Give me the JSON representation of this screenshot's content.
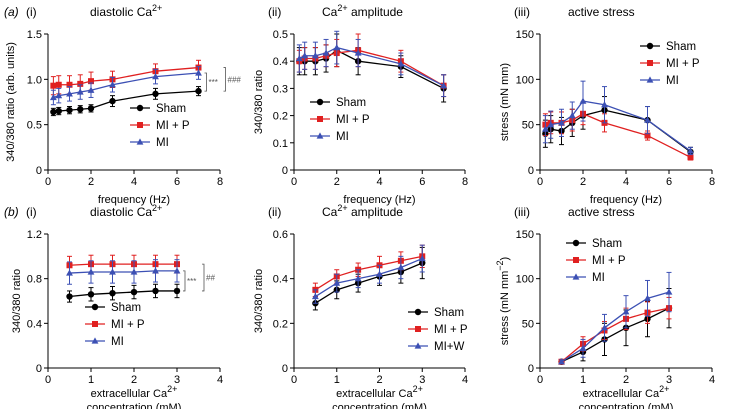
{
  "panel_rows": [
    "(a)",
    "(b)"
  ],
  "colors": {
    "Sham": "#000000",
    "MI + P": "#e02020",
    "MI": "#3c50b4",
    "MI+W": "#3c50b4"
  },
  "chart_data": [
    {
      "type": "line",
      "row_label": "(a)",
      "panel": "(i)",
      "title": "diastolic Ca",
      "title_sup": "2+",
      "xlabel": "frequency (Hz)",
      "xlabel2": "",
      "ylabel": "340/380 ratio (arb. units)",
      "xlim": [
        0,
        8
      ],
      "ylim": [
        0,
        1.5
      ],
      "xticks": [
        "0",
        "2",
        "4",
        "6",
        "8"
      ],
      "yticks": [
        "0",
        "0.5",
        "1.0",
        "1.5"
      ],
      "yvals": [
        0,
        0.5,
        1.0,
        1.5
      ],
      "legend_position": "bottom-right",
      "annotation": [
        "***",
        "###"
      ],
      "series": [
        {
          "name": "Sham",
          "color": "#000000",
          "marker": "circle",
          "x": [
            0.25,
            0.5,
            1,
            1.5,
            2,
            3,
            5,
            7
          ],
          "y": [
            0.64,
            0.65,
            0.66,
            0.67,
            0.68,
            0.76,
            0.84,
            0.87
          ],
          "err": [
            0.04,
            0.04,
            0.04,
            0.04,
            0.04,
            0.06,
            0.06,
            0.05
          ]
        },
        {
          "name": "MI + P",
          "color": "#e02020",
          "marker": "square",
          "x": [
            0.25,
            0.5,
            1,
            1.5,
            2,
            3,
            5,
            7
          ],
          "y": [
            0.93,
            0.94,
            0.94,
            0.95,
            0.98,
            1.0,
            1.09,
            1.13
          ],
          "err": [
            0.1,
            0.1,
            0.1,
            0.1,
            0.1,
            0.09,
            0.08,
            0.08
          ]
        },
        {
          "name": "MI",
          "color": "#3c50b4",
          "marker": "triangle",
          "x": [
            0.25,
            0.5,
            1,
            1.5,
            2,
            3,
            5,
            7
          ],
          "y": [
            0.8,
            0.82,
            0.84,
            0.86,
            0.88,
            0.94,
            1.03,
            1.07
          ],
          "err": [
            0.08,
            0.08,
            0.08,
            0.08,
            0.08,
            0.08,
            0.08,
            0.07
          ]
        }
      ]
    },
    {
      "type": "line",
      "row_label": "",
      "panel": "(ii)",
      "title": "Ca",
      "title_sup": "2+",
      "title_after": " amplitude",
      "xlabel": "frequency (Hz)",
      "xlabel2": "",
      "ylabel": "340/380 ratio",
      "xlim": [
        0,
        8
      ],
      "ylim": [
        0,
        0.5
      ],
      "xticks": [
        "0",
        "2",
        "4",
        "6",
        "8"
      ],
      "yticks": [
        "0",
        "0.1",
        "0.2",
        "0.3",
        "0.4",
        "0.5"
      ],
      "yvals": [
        0,
        0.1,
        0.2,
        0.3,
        0.4,
        0.5
      ],
      "legend_position": "bottom-left",
      "series": [
        {
          "name": "Sham",
          "color": "#000000",
          "marker": "circle",
          "x": [
            0.25,
            0.5,
            1,
            1.5,
            2,
            3,
            5,
            7
          ],
          "y": [
            0.4,
            0.4,
            0.4,
            0.41,
            0.44,
            0.4,
            0.38,
            0.3
          ],
          "err": [
            0.05,
            0.05,
            0.05,
            0.05,
            0.06,
            0.05,
            0.04,
            0.05
          ]
        },
        {
          "name": "MI + P",
          "color": "#e02020",
          "marker": "square",
          "x": [
            0.25,
            0.5,
            1,
            1.5,
            2,
            3,
            5,
            7
          ],
          "y": [
            0.4,
            0.41,
            0.41,
            0.42,
            0.43,
            0.44,
            0.4,
            0.31
          ],
          "err": [
            0.04,
            0.04,
            0.04,
            0.04,
            0.05,
            0.06,
            0.04,
            0.04
          ]
        },
        {
          "name": "MI",
          "color": "#3c50b4",
          "marker": "triangle",
          "x": [
            0.25,
            0.5,
            1,
            1.5,
            2,
            3,
            5,
            7
          ],
          "y": [
            0.41,
            0.42,
            0.42,
            0.43,
            0.45,
            0.43,
            0.39,
            0.31
          ],
          "err": [
            0.05,
            0.05,
            0.05,
            0.05,
            0.06,
            0.05,
            0.04,
            0.04
          ]
        }
      ]
    },
    {
      "type": "line",
      "row_label": "",
      "panel": "(iii)",
      "title": "active stress",
      "xlabel": "frequency (Hz)",
      "xlabel2": "",
      "ylabel": "stress (mN mm)",
      "xlim": [
        0,
        8
      ],
      "ylim": [
        0,
        150
      ],
      "xticks": [
        "0",
        "2",
        "4",
        "6",
        "8"
      ],
      "yticks": [
        "0",
        "50",
        "100",
        "150"
      ],
      "yvals": [
        0,
        50,
        100,
        150
      ],
      "legend_position": "top-right",
      "series": [
        {
          "name": "Sham",
          "color": "#000000",
          "marker": "circle",
          "x": [
            0.25,
            0.5,
            1,
            1.5,
            2,
            3,
            5,
            7
          ],
          "y": [
            40,
            45,
            43,
            52,
            60,
            66,
            55,
            20
          ],
          "err": [
            15,
            15,
            15,
            15,
            15,
            15,
            15,
            5
          ]
        },
        {
          "name": "MI + P",
          "color": "#e02020",
          "marker": "square",
          "x": [
            0.25,
            0.5,
            1,
            1.5,
            2,
            3,
            5,
            7
          ],
          "y": [
            50,
            52,
            52,
            55,
            62,
            52,
            38,
            14
          ],
          "err": [
            12,
            12,
            12,
            12,
            12,
            10,
            5,
            3
          ]
        },
        {
          "name": "MI",
          "color": "#3c50b4",
          "marker": "triangle",
          "x": [
            0.25,
            0.5,
            1,
            1.5,
            2,
            3,
            5,
            7
          ],
          "y": [
            45,
            50,
            52,
            60,
            76,
            72,
            55,
            21
          ],
          "err": [
            15,
            15,
            15,
            15,
            22,
            20,
            15,
            4
          ]
        }
      ]
    },
    {
      "type": "line",
      "row_label": "(b)",
      "panel": "(i)",
      "title": "diastolic Ca",
      "title_sup": "2+",
      "xlabel": "extracellular Ca",
      "xlabel_sup": "2+",
      "xlabel2": "concentration (mM)",
      "ylabel": "340/380 ratio",
      "xlim": [
        0,
        4
      ],
      "ylim": [
        0,
        1.2
      ],
      "xticks": [
        "0",
        "1",
        "2",
        "3",
        "4"
      ],
      "yticks": [
        "0",
        "0.4",
        "0.8",
        "1.2"
      ],
      "yvals": [
        0,
        0.4,
        0.8,
        1.2
      ],
      "legend_position": "bottom-left",
      "annotation": [
        "***",
        "##"
      ],
      "series": [
        {
          "name": "Sham",
          "color": "#000000",
          "marker": "circle",
          "x": [
            0.5,
            1,
            1.5,
            2,
            2.5,
            3
          ],
          "y": [
            0.64,
            0.66,
            0.67,
            0.68,
            0.69,
            0.69
          ],
          "err": [
            0.05,
            0.06,
            0.06,
            0.06,
            0.06,
            0.06
          ]
        },
        {
          "name": "MI + P",
          "color": "#e02020",
          "marker": "square",
          "x": [
            0.5,
            1,
            1.5,
            2,
            2.5,
            3
          ],
          "y": [
            0.92,
            0.93,
            0.93,
            0.93,
            0.93,
            0.93
          ],
          "err": [
            0.08,
            0.08,
            0.08,
            0.08,
            0.08,
            0.08
          ]
        },
        {
          "name": "MI",
          "color": "#3c50b4",
          "marker": "triangle",
          "x": [
            0.5,
            1,
            1.5,
            2,
            2.5,
            3
          ],
          "y": [
            0.85,
            0.86,
            0.86,
            0.86,
            0.87,
            0.87
          ],
          "err": [
            0.1,
            0.1,
            0.1,
            0.1,
            0.1,
            0.1
          ]
        }
      ]
    },
    {
      "type": "line",
      "row_label": "",
      "panel": "(ii)",
      "title": "Ca",
      "title_sup": "2+",
      "title_after": " amplitude",
      "xlabel": "extracellular Ca",
      "xlabel_sup": "2+",
      "xlabel2": "concentration (mM)",
      "ylabel": "340/380 ratio",
      "xlim": [
        0,
        4
      ],
      "ylim": [
        0,
        0.6
      ],
      "xticks": [
        "0",
        "1",
        "2",
        "3",
        "4"
      ],
      "yticks": [
        "0",
        "0.2",
        "0.4",
        "0.6"
      ],
      "yvals": [
        0,
        0.2,
        0.4,
        0.6
      ],
      "legend_position": "bottom-right",
      "series": [
        {
          "name": "Sham",
          "color": "#000000",
          "marker": "circle",
          "x": [
            0.5,
            1,
            1.5,
            2,
            2.5,
            3
          ],
          "y": [
            0.29,
            0.35,
            0.38,
            0.41,
            0.43,
            0.47
          ],
          "err": [
            0.03,
            0.04,
            0.04,
            0.04,
            0.05,
            0.07
          ]
        },
        {
          "name": "MI + P",
          "color": "#e02020",
          "marker": "square",
          "x": [
            0.5,
            1,
            1.5,
            2,
            2.5,
            3
          ],
          "y": [
            0.35,
            0.41,
            0.44,
            0.46,
            0.48,
            0.5
          ],
          "err": [
            0.03,
            0.03,
            0.03,
            0.04,
            0.04,
            0.05
          ]
        },
        {
          "name": "MI+W",
          "color": "#3c50b4",
          "marker": "triangle",
          "x": [
            0.5,
            1,
            1.5,
            2,
            2.5,
            3
          ],
          "y": [
            0.32,
            0.38,
            0.4,
            0.42,
            0.45,
            0.49
          ],
          "err": [
            0.03,
            0.04,
            0.04,
            0.04,
            0.05,
            0.06
          ]
        }
      ]
    },
    {
      "type": "line",
      "row_label": "",
      "panel": "(iii)",
      "title": "active stress",
      "xlabel": "extracellular Ca",
      "xlabel_sup": "2+",
      "xlabel2": "concentration (mM)",
      "ylabel": "stress (mN mm",
      "ylabel_sup": "−2",
      "ylabel_after": ")",
      "xlim": [
        0,
        4
      ],
      "ylim": [
        0,
        150
      ],
      "xticks": [
        "0",
        "1",
        "2",
        "3",
        "4"
      ],
      "yticks": [
        "0",
        "50",
        "100",
        "150"
      ],
      "yvals": [
        0,
        50,
        100,
        150
      ],
      "legend_position": "top-left",
      "series": [
        {
          "name": "Sham",
          "color": "#000000",
          "marker": "circle",
          "x": [
            0.5,
            1,
            1.5,
            2,
            2.5,
            3
          ],
          "y": [
            7,
            18,
            32,
            45,
            55,
            67
          ],
          "err": [
            2,
            10,
            18,
            20,
            20,
            22
          ]
        },
        {
          "name": "MI + P",
          "color": "#e02020",
          "marker": "square",
          "x": [
            0.5,
            1,
            1.5,
            2,
            2.5,
            3
          ],
          "y": [
            7,
            27,
            42,
            55,
            62,
            67
          ],
          "err": [
            2,
            8,
            10,
            12,
            12,
            12
          ]
        },
        {
          "name": "MI",
          "color": "#3c50b4",
          "marker": "triangle",
          "x": [
            0.5,
            1,
            1.5,
            2,
            2.5,
            3
          ],
          "y": [
            7,
            22,
            45,
            63,
            78,
            85
          ],
          "err": [
            2,
            10,
            15,
            18,
            20,
            22
          ]
        }
      ]
    }
  ]
}
